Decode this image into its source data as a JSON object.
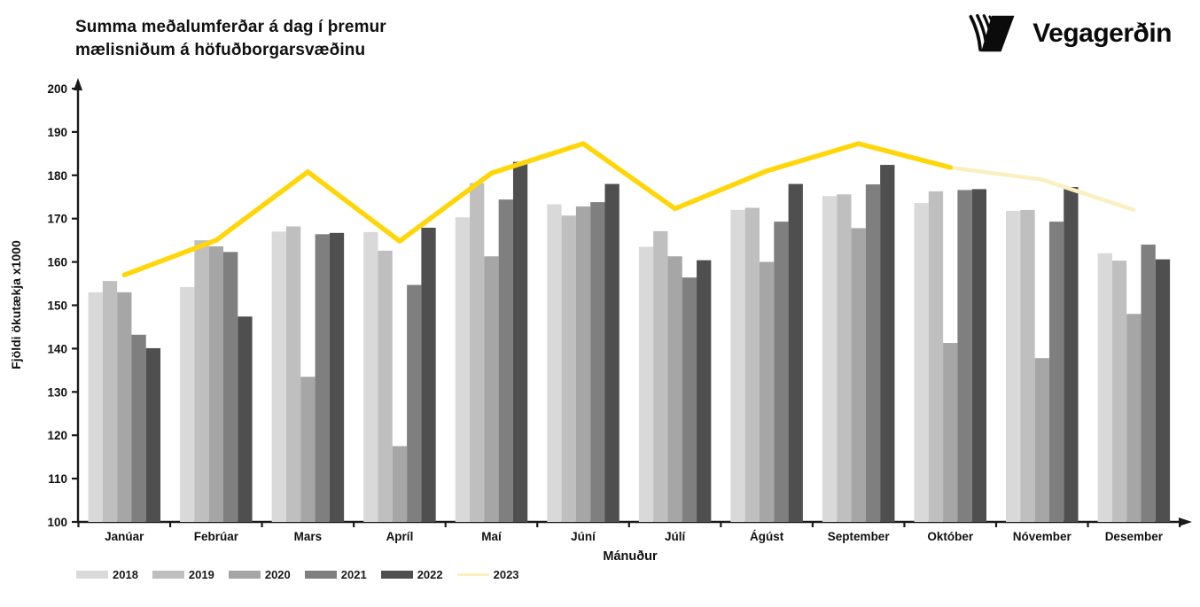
{
  "header": {
    "title_line1": "Summa meðalumferðar á dag í þremur",
    "title_line2": "mælisniðum á höfuðborgarsvæðinu",
    "logo_text": "Vegagerðin"
  },
  "chart_data": {
    "type": "bar",
    "title": "Summa meðalumferðar á dag í þremur mælisniðum á höfuðborgarsvæðinu",
    "xlabel": "Mánuður",
    "ylabel": "Fjöldi ökutækja x1000",
    "ylim": [
      100,
      200
    ],
    "ytick_step": 10,
    "grid": false,
    "legend_position": "bottom-left",
    "categories": [
      "Janúar",
      "Febrúar",
      "Mars",
      "Apríl",
      "Maí",
      "Júní",
      "Júlí",
      "Ágúst",
      "September",
      "Október",
      "Nóvember",
      "Desember"
    ],
    "series": [
      {
        "name": "2018",
        "type": "bar",
        "color": "#d9d9d9",
        "values": [
          153.0,
          154.2,
          167.0,
          166.9,
          170.3,
          173.3,
          163.5,
          172.0,
          175.2,
          173.6,
          171.8,
          162.0
        ]
      },
      {
        "name": "2019",
        "type": "bar",
        "color": "#bfbfbf",
        "values": [
          155.6,
          165.0,
          168.2,
          162.6,
          178.2,
          170.7,
          167.1,
          172.5,
          175.6,
          176.3,
          172.0,
          160.3
        ]
      },
      {
        "name": "2020",
        "type": "bar",
        "color": "#a6a6a6",
        "values": [
          153.0,
          163.6,
          133.5,
          117.5,
          161.3,
          172.8,
          161.3,
          160.0,
          167.8,
          141.3,
          137.8,
          148.0
        ]
      },
      {
        "name": "2021",
        "type": "bar",
        "color": "#7f7f7f",
        "values": [
          143.2,
          162.3,
          166.4,
          154.7,
          174.4,
          173.8,
          156.4,
          169.3,
          177.9,
          176.6,
          169.3,
          164.0
        ]
      },
      {
        "name": "2022",
        "type": "bar",
        "color": "#4f4f4f",
        "values": [
          140.1,
          147.4,
          166.7,
          167.9,
          183.1,
          178.0,
          160.4,
          178.0,
          182.4,
          176.8,
          177.3,
          160.6
        ]
      },
      {
        "name": "2023",
        "type": "line",
        "color": "#ffd60a",
        "color_faded": "#faf0c0",
        "solid_until_index": 9,
        "values": [
          157.0,
          165.0,
          180.8,
          164.8,
          180.5,
          187.3,
          172.3,
          181.0,
          187.3,
          181.8,
          179.0,
          172.0
        ]
      }
    ]
  }
}
